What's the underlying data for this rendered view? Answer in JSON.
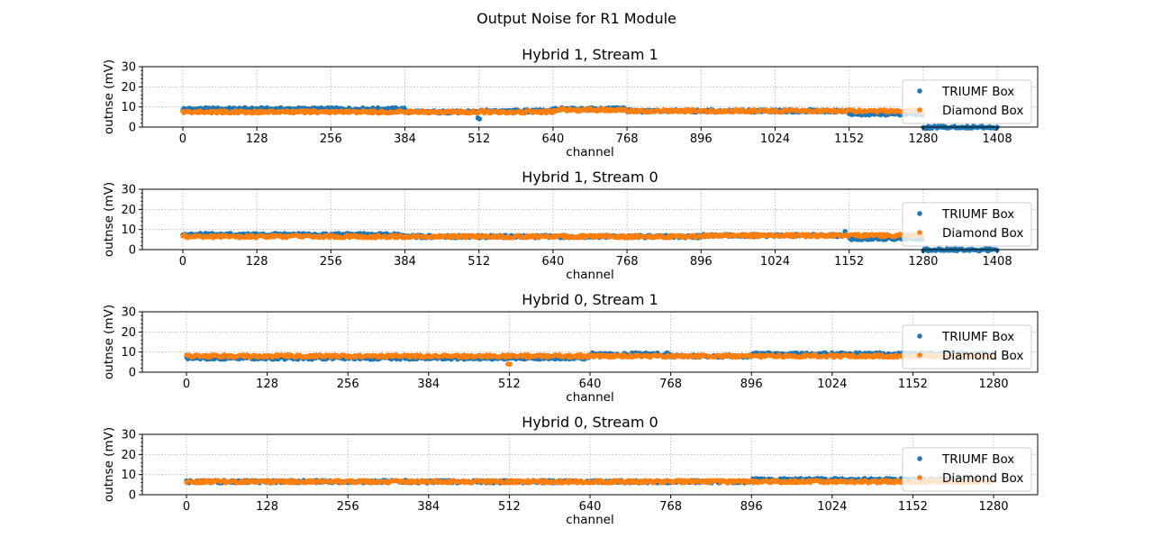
{
  "figure": {
    "suptitle": "Output Noise for R1 Module",
    "colors": {
      "triumf": "#1f77b4",
      "diamond": "#ff7f0e",
      "grid": "#b0b0b0"
    }
  },
  "chart_data": [
    {
      "type": "scatter",
      "title": "Hybrid 1, Stream 1",
      "xlabel": "channel",
      "ylabel": "outnse (mV)",
      "xlim": [
        -70,
        1478
      ],
      "ylim": [
        0,
        30
      ],
      "xticks": [
        0,
        128,
        256,
        384,
        512,
        640,
        768,
        896,
        1024,
        1152,
        1280,
        1408
      ],
      "yticks": [
        0,
        10,
        20,
        30
      ],
      "grid": true,
      "legend": {
        "placement": "right",
        "entries": [
          "TRIUMF Box",
          "Diamond Box"
        ]
      },
      "series": [
        {
          "name": "TRIUMF Box",
          "color": "#1f77b4",
          "segments": [
            {
              "x0": 0,
              "x1": 383,
              "y": 9.0
            },
            {
              "x0": 384,
              "x1": 511,
              "y": 7.5
            },
            {
              "x0": 512,
              "x1": 639,
              "y": 8.0
            },
            {
              "x0": 640,
              "x1": 767,
              "y": 9.0
            },
            {
              "x0": 768,
              "x1": 1151,
              "y": 8.0
            },
            {
              "x0": 1152,
              "x1": 1279,
              "y": 6.5
            },
            {
              "x0": 1280,
              "x1": 1408,
              "y": 0.0
            }
          ],
          "outliers": [
            [
              510,
              4.5
            ],
            [
              513,
              4.0
            ]
          ]
        },
        {
          "name": "Diamond Box",
          "color": "#ff7f0e",
          "segments": [
            {
              "x0": 0,
              "x1": 383,
              "y": 7.5
            },
            {
              "x0": 384,
              "x1": 639,
              "y": 7.5
            },
            {
              "x0": 640,
              "x1": 767,
              "y": 8.5
            },
            {
              "x0": 768,
              "x1": 1279,
              "y": 8.0
            }
          ],
          "outliers": []
        }
      ]
    },
    {
      "type": "scatter",
      "title": "Hybrid 1, Stream 0",
      "xlabel": "channel",
      "ylabel": "outnse (mV)",
      "xlim": [
        -70,
        1478
      ],
      "ylim": [
        0,
        30
      ],
      "xticks": [
        0,
        128,
        256,
        384,
        512,
        640,
        768,
        896,
        1024,
        1152,
        1280,
        1408
      ],
      "yticks": [
        0,
        10,
        20,
        30
      ],
      "grid": true,
      "legend": {
        "placement": "right",
        "entries": [
          "TRIUMF Box",
          "Diamond Box"
        ]
      },
      "series": [
        {
          "name": "TRIUMF Box",
          "color": "#1f77b4",
          "segments": [
            {
              "x0": 0,
              "x1": 383,
              "y": 7.5
            },
            {
              "x0": 384,
              "x1": 895,
              "y": 6.5
            },
            {
              "x0": 896,
              "x1": 1151,
              "y": 7.0
            },
            {
              "x0": 1152,
              "x1": 1279,
              "y": 5.5
            },
            {
              "x0": 1280,
              "x1": 1408,
              "y": 0.0
            }
          ],
          "outliers": [
            [
              1145,
              9.0
            ]
          ]
        },
        {
          "name": "Diamond Box",
          "color": "#ff7f0e",
          "segments": [
            {
              "x0": 0,
              "x1": 895,
              "y": 6.5
            },
            {
              "x0": 896,
              "x1": 1279,
              "y": 7.0
            }
          ],
          "outliers": []
        }
      ]
    },
    {
      "type": "scatter",
      "title": "Hybrid 0, Stream 1",
      "xlabel": "channel",
      "ylabel": "outnse (mV)",
      "xlim": [
        -70,
        1350
      ],
      "ylim": [
        0,
        30
      ],
      "xticks": [
        0,
        128,
        256,
        384,
        512,
        640,
        768,
        896,
        1024,
        1152,
        1280
      ],
      "yticks": [
        0,
        10,
        20,
        30
      ],
      "grid": true,
      "legend": {
        "placement": "right",
        "entries": [
          "TRIUMF Box",
          "Diamond Box"
        ]
      },
      "series": [
        {
          "name": "TRIUMF Box",
          "color": "#1f77b4",
          "segments": [
            {
              "x0": 0,
              "x1": 383,
              "y": 7.0
            },
            {
              "x0": 384,
              "x1": 639,
              "y": 7.0
            },
            {
              "x0": 640,
              "x1": 767,
              "y": 9.0
            },
            {
              "x0": 768,
              "x1": 895,
              "y": 8.0
            },
            {
              "x0": 896,
              "x1": 1279,
              "y": 9.0
            }
          ],
          "outliers": []
        },
        {
          "name": "Diamond Box",
          "color": "#ff7f0e",
          "segments": [
            {
              "x0": 0,
              "x1": 383,
              "y": 8.0
            },
            {
              "x0": 384,
              "x1": 1279,
              "y": 8.0
            }
          ],
          "outliers": [
            [
              510,
              4.0
            ],
            [
              513,
              4.0
            ],
            [
              509,
              8.5
            ]
          ]
        }
      ]
    },
    {
      "type": "scatter",
      "title": "Hybrid 0, Stream 0",
      "xlabel": "channel",
      "ylabel": "outnse (mV)",
      "xlim": [
        -70,
        1350
      ],
      "ylim": [
        0,
        30
      ],
      "xticks": [
        0,
        128,
        256,
        384,
        512,
        640,
        768,
        896,
        1024,
        1152,
        1280
      ],
      "yticks": [
        0,
        10,
        20,
        30
      ],
      "grid": true,
      "legend": {
        "placement": "right",
        "entries": [
          "TRIUMF Box",
          "Diamond Box"
        ]
      },
      "series": [
        {
          "name": "TRIUMF Box",
          "color": "#1f77b4",
          "segments": [
            {
              "x0": 0,
              "x1": 895,
              "y": 6.5
            },
            {
              "x0": 896,
              "x1": 1279,
              "y": 7.5
            }
          ],
          "outliers": []
        },
        {
          "name": "Diamond Box",
          "color": "#ff7f0e",
          "segments": [
            {
              "x0": 0,
              "x1": 1279,
              "y": 6.5
            }
          ],
          "outliers": []
        }
      ]
    }
  ]
}
